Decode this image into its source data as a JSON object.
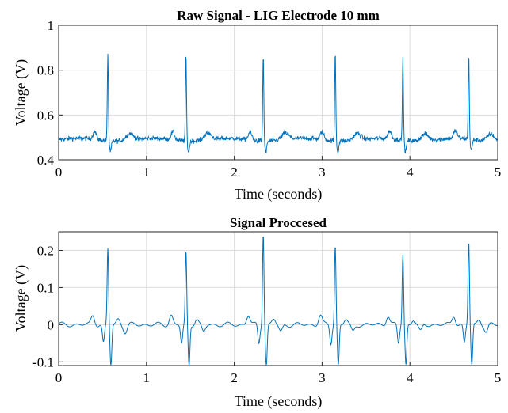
{
  "chart_data": [
    {
      "type": "line",
      "title": "Raw Signal - LIG Electrode 10 mm",
      "xlabel": "Time (seconds)",
      "ylabel": "Voltage (V)",
      "xlim": [
        0,
        5
      ],
      "ylim": [
        0.4,
        1
      ],
      "xticks": [
        "0",
        "1",
        "2",
        "3",
        "4",
        "5"
      ],
      "yticks": [
        "0.4",
        "0.6",
        "0.8",
        "1"
      ],
      "grid": true,
      "color": "#0072BD",
      "baseline": 0.49,
      "peaks": [
        {
          "t": 0.56,
          "v": 0.88
        },
        {
          "t": 1.45,
          "v": 0.875
        },
        {
          "t": 2.33,
          "v": 0.875
        },
        {
          "t": 3.15,
          "v": 0.89
        },
        {
          "t": 3.92,
          "v": 0.85
        },
        {
          "t": 4.67,
          "v": 0.87
        }
      ]
    },
    {
      "type": "line",
      "title": "Signal Proccesed",
      "xlabel": "Time (seconds)",
      "ylabel": "Voltage (V)",
      "xlim": [
        0,
        5
      ],
      "ylim": [
        -0.11,
        0.25
      ],
      "xticks": [
        "0",
        "1",
        "2",
        "3",
        "4",
        "5"
      ],
      "yticks": [
        "-0.1",
        "0",
        "0.1",
        "0.2"
      ],
      "grid": true,
      "color": "#0072BD",
      "baseline": 0.0,
      "peaks": [
        {
          "t": 0.56,
          "v": 0.205
        },
        {
          "t": 1.45,
          "v": 0.195
        },
        {
          "t": 2.33,
          "v": 0.25
        },
        {
          "t": 3.15,
          "v": 0.215
        },
        {
          "t": 3.92,
          "v": 0.19
        },
        {
          "t": 4.67,
          "v": 0.225
        }
      ]
    }
  ]
}
